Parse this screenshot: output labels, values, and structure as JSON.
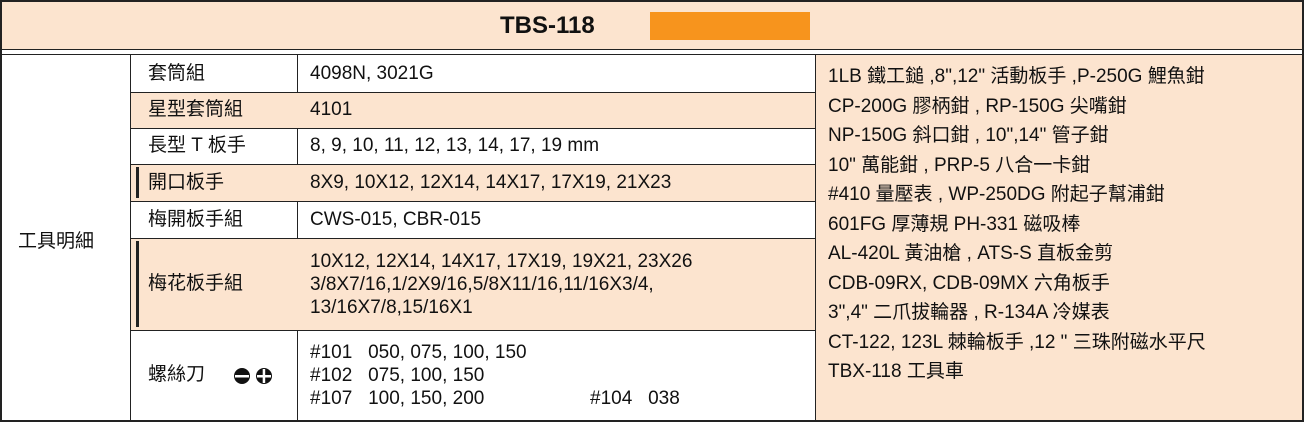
{
  "header": {
    "title": "TBS-118"
  },
  "table": {
    "category": "工具明細",
    "rows": [
      {
        "name": "套筒組",
        "lines": [
          "4098N, 3021G"
        ]
      },
      {
        "name": "星型套筒組",
        "lines": [
          "4101"
        ]
      },
      {
        "name": "長型 T 板手",
        "lines": [
          "8, 9, 10, 11, 12, 13, 14, 17, 19 mm"
        ]
      },
      {
        "name": "開口板手",
        "lines": [
          "8X9, 10X12, 12X14, 14X17, 17X19, 21X23"
        ]
      },
      {
        "name": "梅開板手組",
        "lines": [
          "CWS-015, CBR-015"
        ]
      },
      {
        "name": "梅花板手組",
        "lines": [
          "10X12, 12X14, 14X17, 17X19, 19X21, 23X26",
          "3/8X7/16,1/2X9/16,5/8X11/16,11/16X3/4,",
          "13/16X7/8,15/16X1"
        ]
      },
      {
        "name": "螺絲刀",
        "lines": [
          "#101   050, 075, 100, 150",
          "#102   075, 100, 150",
          "#107   100, 150, 200"
        ],
        "note": "#104   038"
      }
    ]
  },
  "side_list": [
    "1LB 鐵工鎚 ,8\",12\" 活動板手 ,P-250G 鯉魚鉗",
    "CP-200G 膠柄鉗 , RP-150G 尖嘴鉗",
    "NP-150G 斜口鉗 , 10\",14\" 管子鉗",
    "10\" 萬能鉗 , PRP-5 八合一卡鉗",
    "#410 量壓表 , WP-250DG 附起子幫浦鉗",
    "601FG 厚薄規 PH-331 磁吸棒",
    "AL-420L 黃油槍 , ATS-S 直板金剪",
    "CDB-09RX, CDB-09MX 六角板手",
    "3\",4\" 二爪拔輪器 , R-134A 冷媒表",
    "CT-122, 123L 棘輪板手 ,12 \" 三珠附磁水平尺",
    "TBX-118 工具車"
  ]
}
